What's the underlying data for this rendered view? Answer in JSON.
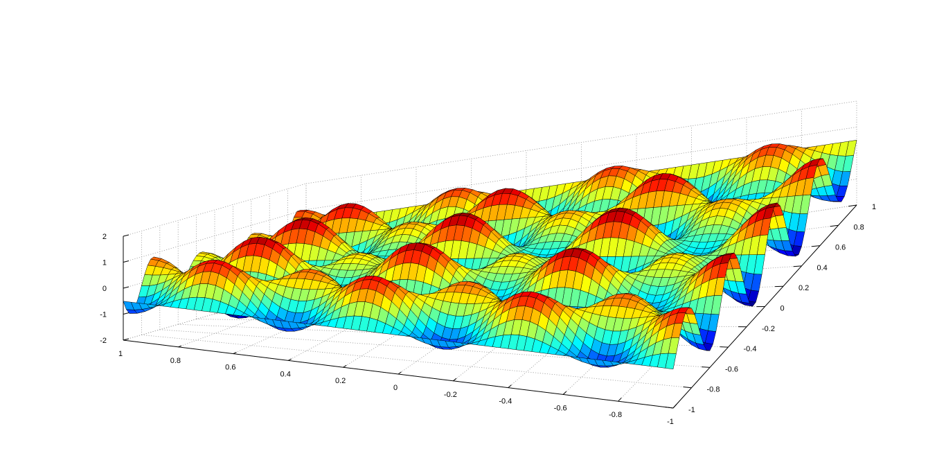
{
  "chart_data": {
    "type": "surface",
    "title": "",
    "xlabel": "",
    "ylabel": "",
    "zlabel": "",
    "function": "z = sin(7*pi*x/2) * sin(4*pi*y) + 0.5*sin(9*pi*y/2)",
    "x_range": [
      -1,
      1
    ],
    "y_range": [
      -1,
      1
    ],
    "zlim": [
      -2,
      2
    ],
    "grid": true,
    "colormap": "jet",
    "x_ticks": [
      1,
      0.8,
      0.6,
      0.4,
      0.2,
      0,
      -0.2,
      -0.4,
      -0.6,
      -0.8,
      -1
    ],
    "x_tick_labels": [
      "1",
      "0.8",
      "0.6",
      "0.4",
      "0.2",
      "0",
      "-0.2",
      "-0.4",
      "-0.6",
      "-0.8",
      "-1"
    ],
    "y_ticks": [
      -1,
      -0.8,
      -0.6,
      -0.4,
      -0.2,
      0,
      0.2,
      0.4,
      0.6,
      0.8,
      1
    ],
    "y_tick_labels": [
      "-1",
      "-0.8",
      "-0.6",
      "-0.4",
      "-0.2",
      "0",
      "0.2",
      "0.4",
      "0.6",
      "0.8",
      "1"
    ],
    "z_ticks": [
      -2,
      -1,
      0,
      1,
      2
    ],
    "z_tick_labels": [
      "-2",
      "-1",
      "0",
      "1",
      "2"
    ]
  }
}
